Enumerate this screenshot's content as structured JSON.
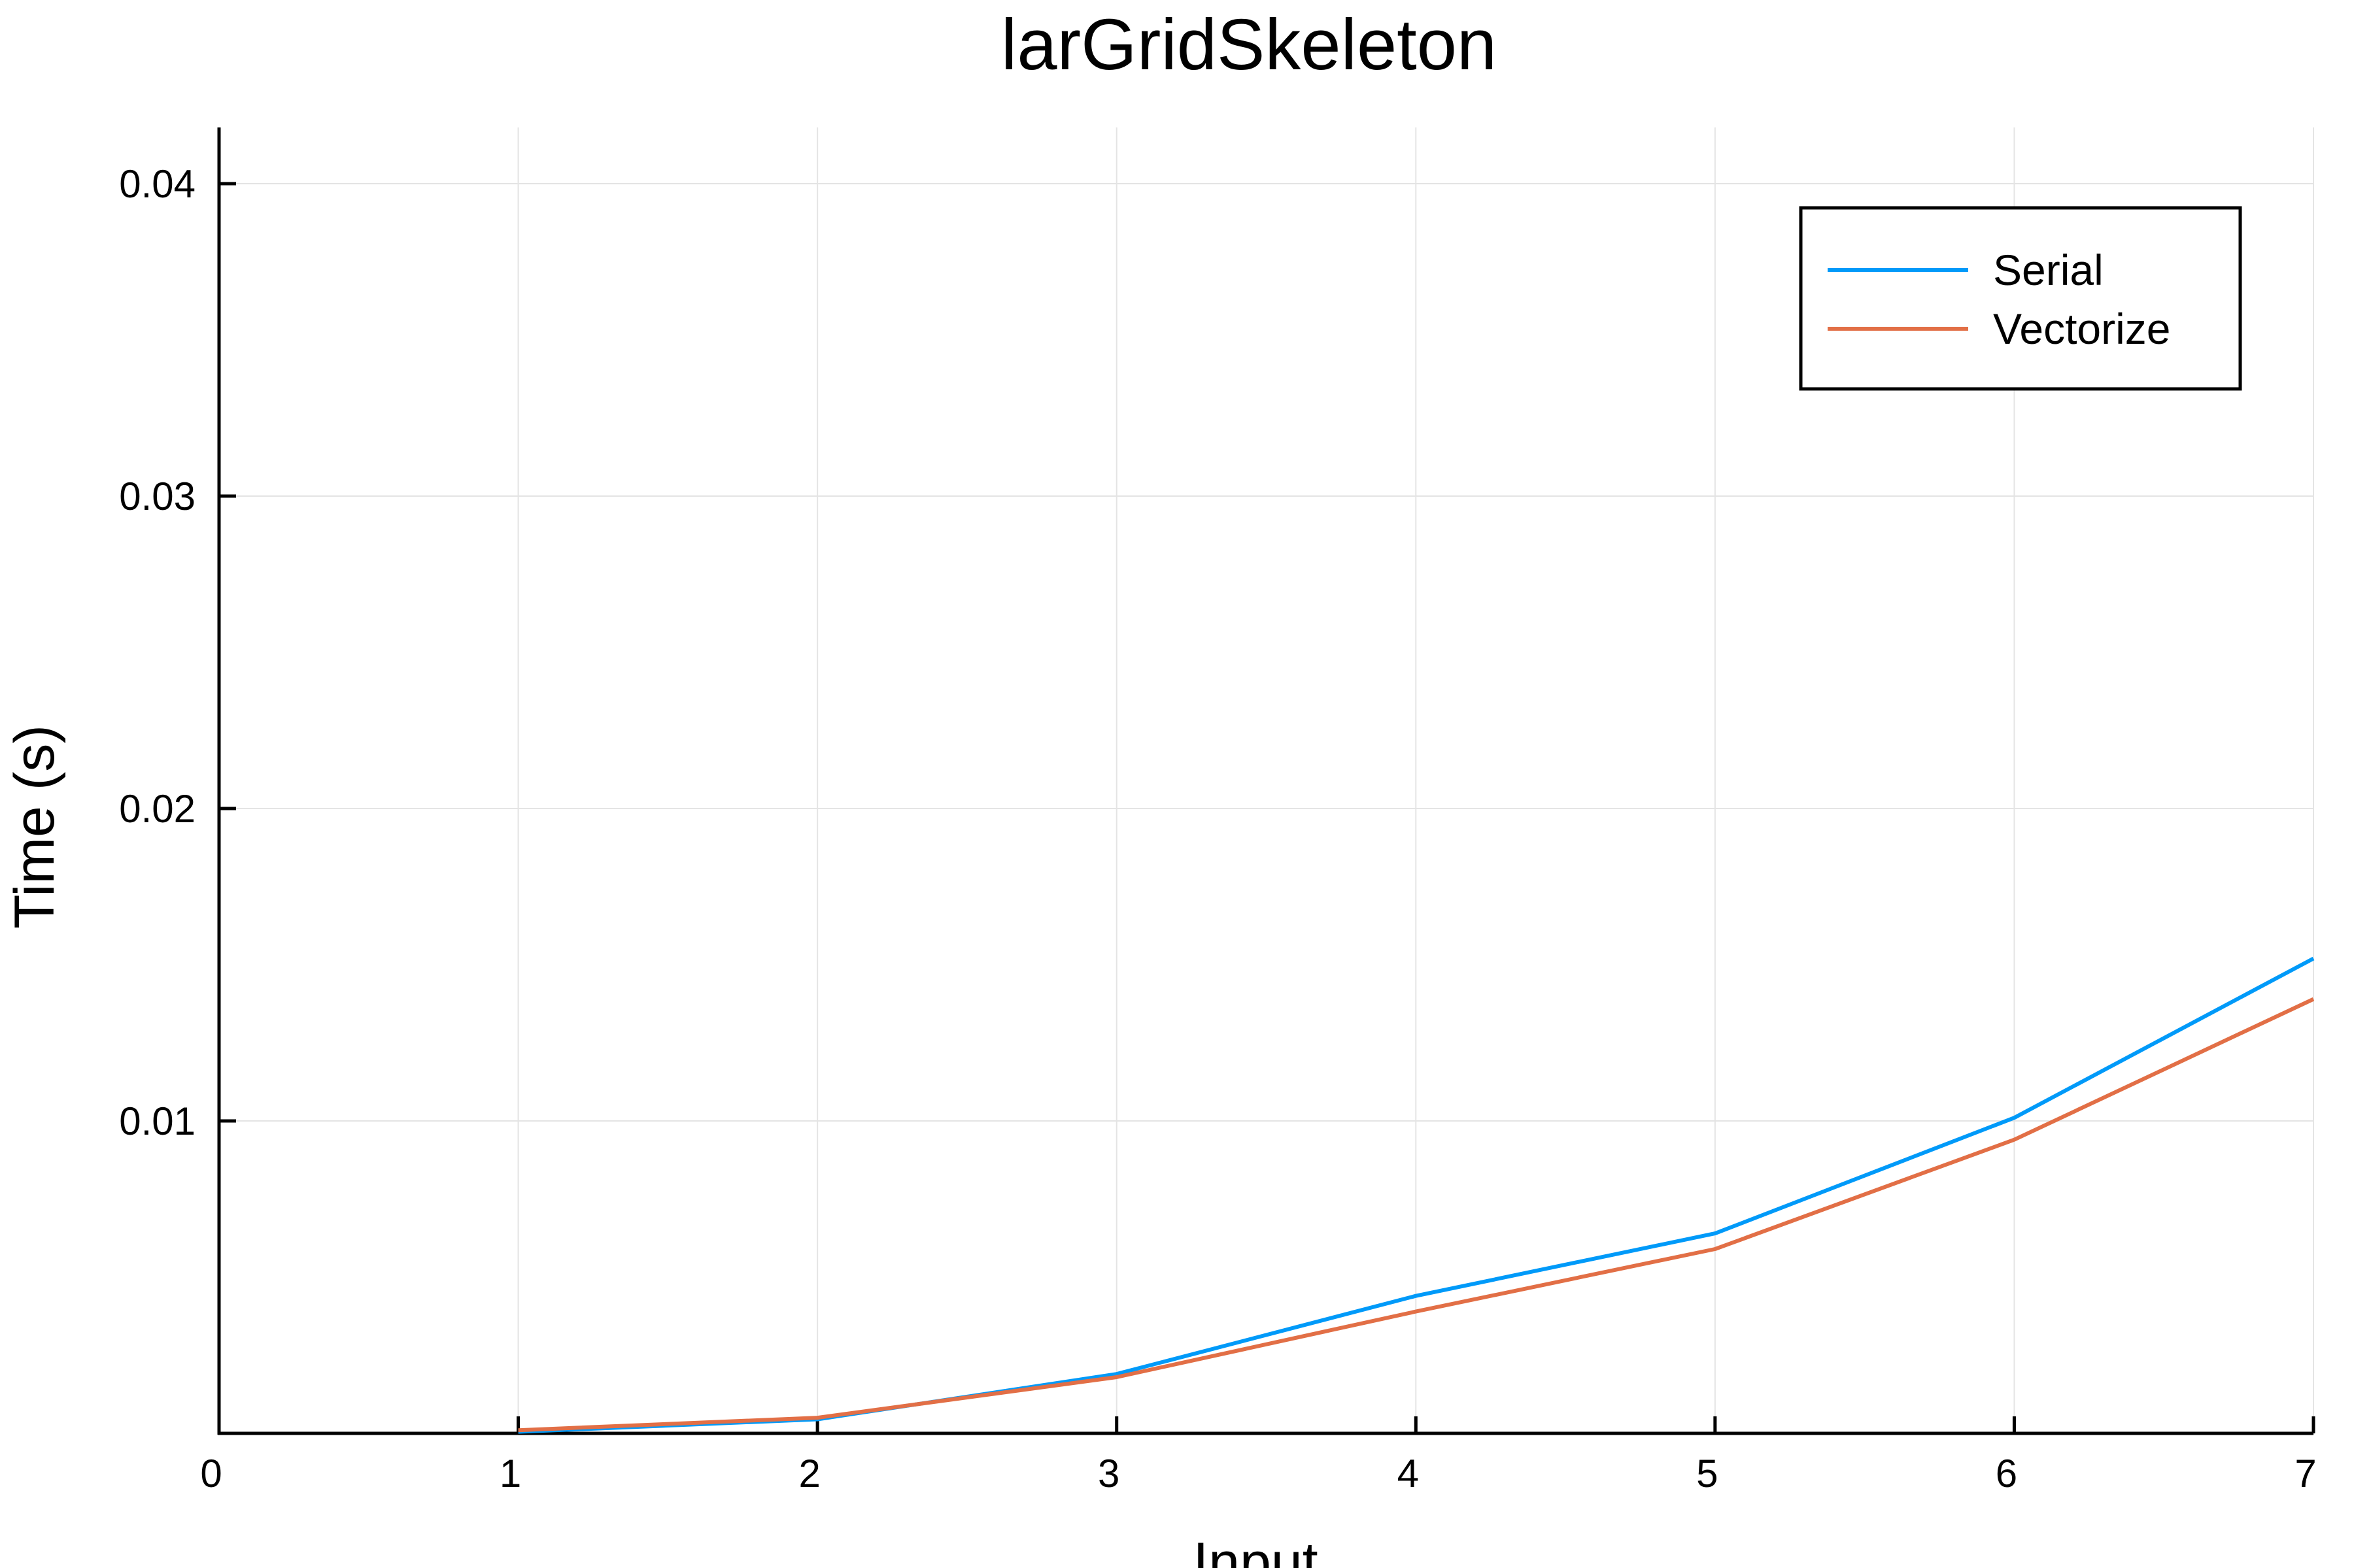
{
  "chart_data": {
    "type": "line",
    "title": "larGridSkeleton",
    "xlabel": "Input",
    "ylabel": "Time (s)",
    "xlim": [
      0,
      7
    ],
    "ylim": [
      0,
      0.0418
    ],
    "x_ticks": [
      0,
      1,
      2,
      3,
      4,
      5,
      6,
      7
    ],
    "x_tick_labels": [
      "0",
      "1",
      "2",
      "3",
      "4",
      "5",
      "6",
      "7"
    ],
    "y_ticks": [
      0.01,
      0.02,
      0.03,
      0.04
    ],
    "y_tick_labels": [
      "0.01",
      "0.02",
      "0.03",
      "0.04"
    ],
    "grid": true,
    "legend_position": "top-right",
    "series": [
      {
        "name": "Serial",
        "color": "#009af9",
        "x": [
          1,
          2,
          3,
          4,
          5,
          6,
          7
        ],
        "y": [
          5e-05,
          0.00045,
          0.0019,
          0.0044,
          0.0064,
          0.0101,
          0.0152
        ]
      },
      {
        "name": "Vectorize",
        "color": "#e26f46",
        "x": [
          1,
          2,
          3,
          4,
          5,
          6,
          7
        ],
        "y": [
          0.0001,
          0.0005,
          0.0018,
          0.0039,
          0.0059,
          0.0094,
          0.0139
        ]
      }
    ]
  }
}
